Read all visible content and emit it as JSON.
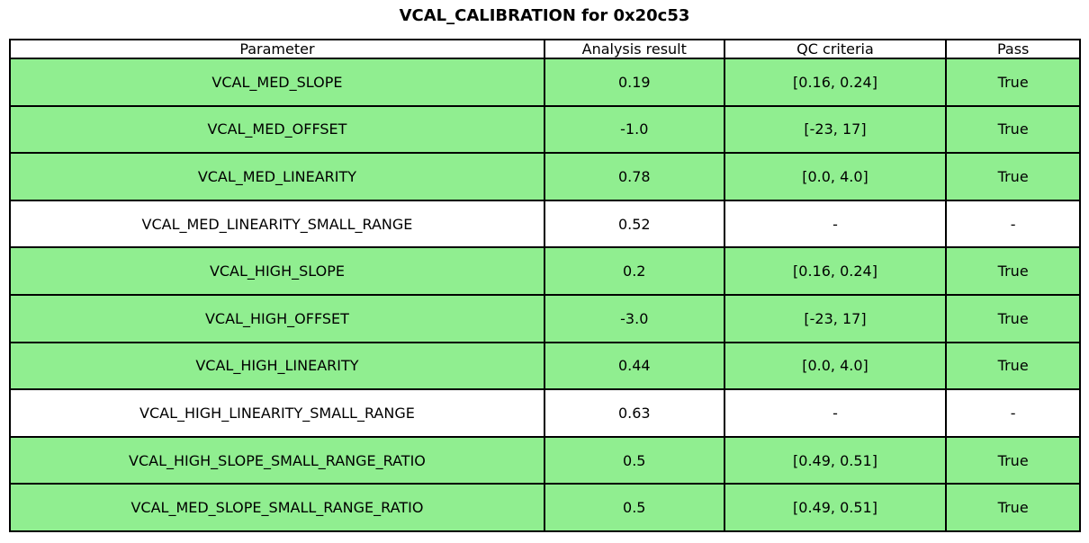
{
  "colors": {
    "row_highlight_green": "#90ee90",
    "border": "#000000",
    "background": "#ffffff",
    "text": "#000000"
  },
  "chart_data": {
    "type": "table",
    "title": "VCAL_CALIBRATION for 0x20c53",
    "columns": [
      "Parameter",
      "Analysis result",
      "QC criteria",
      "Pass"
    ],
    "rows": [
      {
        "cells": [
          "VCAL_MED_SLOPE",
          "0.19",
          "[0.16, 0.24]",
          "True"
        ],
        "highlighted": true
      },
      {
        "cells": [
          "VCAL_MED_OFFSET",
          "-1.0",
          "[-23, 17]",
          "True"
        ],
        "highlighted": true
      },
      {
        "cells": [
          "VCAL_MED_LINEARITY",
          "0.78",
          "[0.0, 4.0]",
          "True"
        ],
        "highlighted": true
      },
      {
        "cells": [
          "VCAL_MED_LINEARITY_SMALL_RANGE",
          "0.52",
          "-",
          "-"
        ],
        "highlighted": false
      },
      {
        "cells": [
          "VCAL_HIGH_SLOPE",
          "0.2",
          "[0.16, 0.24]",
          "True"
        ],
        "highlighted": true
      },
      {
        "cells": [
          "VCAL_HIGH_OFFSET",
          "-3.0",
          "[-23, 17]",
          "True"
        ],
        "highlighted": true
      },
      {
        "cells": [
          "VCAL_HIGH_LINEARITY",
          "0.44",
          "[0.0, 4.0]",
          "True"
        ],
        "highlighted": true
      },
      {
        "cells": [
          "VCAL_HIGH_LINEARITY_SMALL_RANGE",
          "0.63",
          "-",
          "-"
        ],
        "highlighted": false
      },
      {
        "cells": [
          "VCAL_HIGH_SLOPE_SMALL_RANGE_RATIO",
          "0.5",
          "[0.49, 0.51]",
          "True"
        ],
        "highlighted": true
      },
      {
        "cells": [
          "VCAL_MED_SLOPE_SMALL_RANGE_RATIO",
          "0.5",
          "[0.49, 0.51]",
          "True"
        ],
        "highlighted": true
      }
    ]
  }
}
